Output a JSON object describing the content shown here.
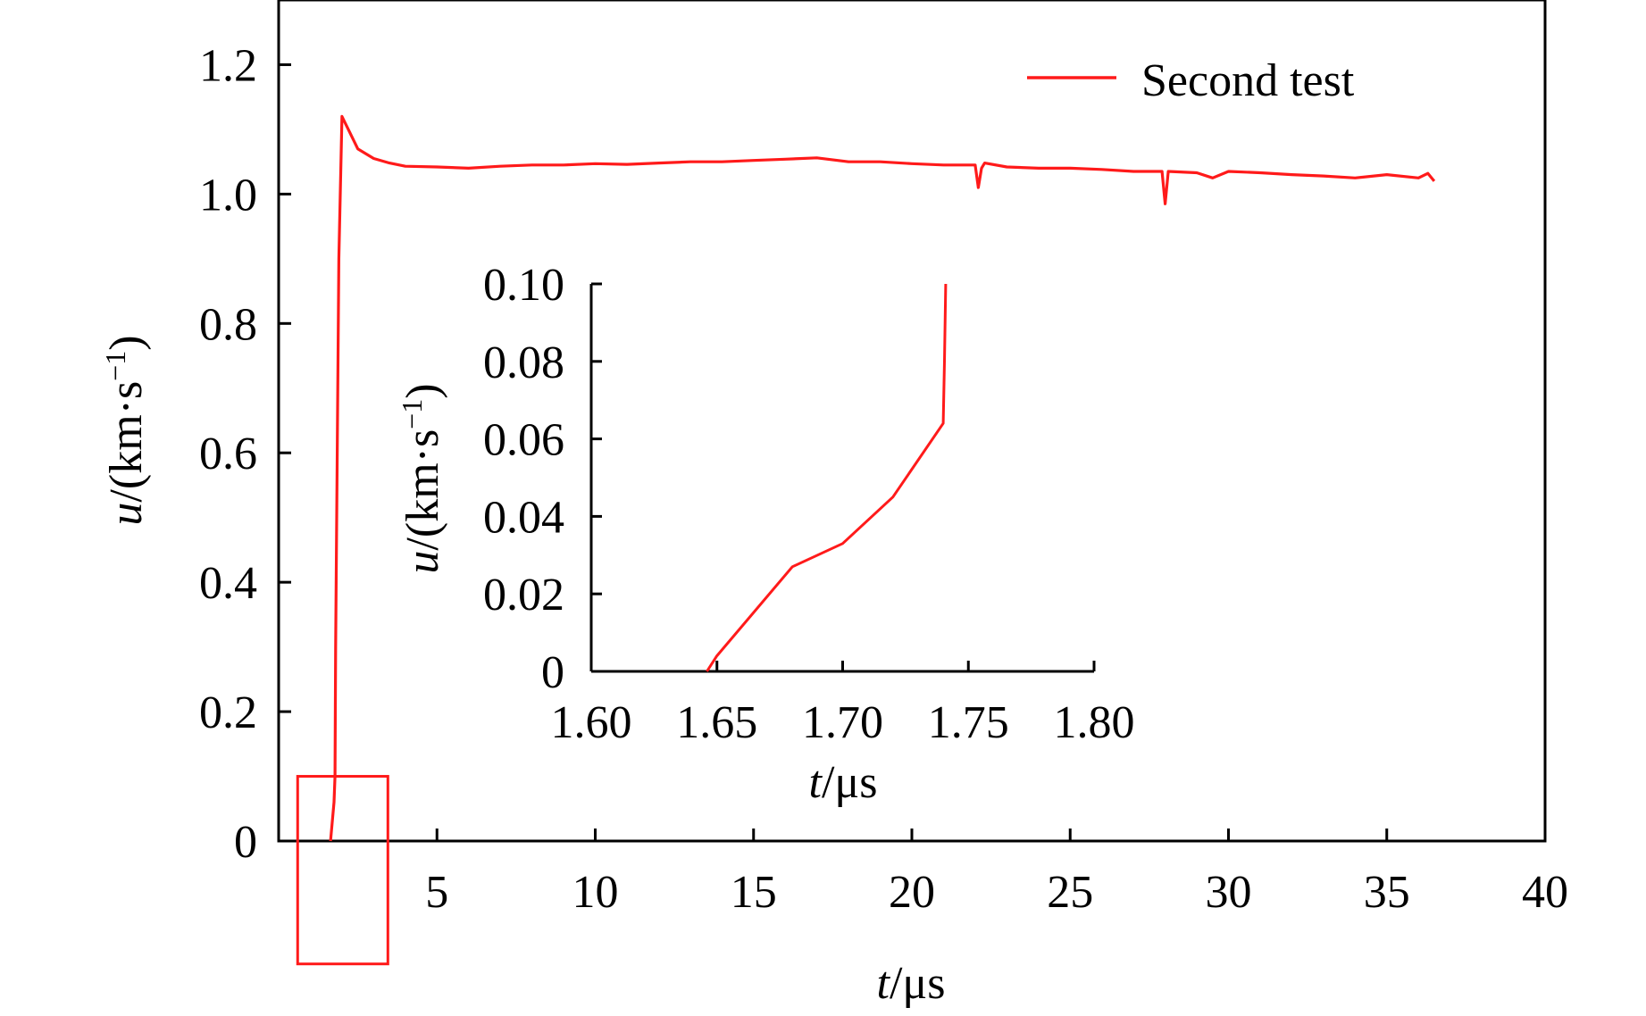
{
  "colors": {
    "series": "#ff1a1a",
    "axis": "#000000",
    "background": "#ffffff"
  },
  "chart_data": [
    {
      "type": "line",
      "panel": "main",
      "title": "",
      "xlabel": {
        "var": "t",
        "unit": "/μs"
      },
      "ylabel": {
        "var": "u",
        "unit": "/(km·s",
        "exp": "−1",
        "close": ")"
      },
      "xlim": [
        0,
        40
      ],
      "ylim": [
        0,
        1.3
      ],
      "x_ticks": [
        {
          "v": 5,
          "label": "5"
        },
        {
          "v": 10,
          "label": "10"
        },
        {
          "v": 15,
          "label": "15"
        },
        {
          "v": 20,
          "label": "20"
        },
        {
          "v": 25,
          "label": "25"
        },
        {
          "v": 30,
          "label": "30"
        },
        {
          "v": 35,
          "label": "35"
        },
        {
          "v": 40,
          "label": "40"
        }
      ],
      "y_ticks": [
        {
          "v": 0,
          "label": "0"
        },
        {
          "v": 0.2,
          "label": "0.2"
        },
        {
          "v": 0.4,
          "label": "0.4"
        },
        {
          "v": 0.6,
          "label": "0.6"
        },
        {
          "v": 0.8,
          "label": "0.8"
        },
        {
          "v": 1.0,
          "label": "1.0"
        },
        {
          "v": 1.2,
          "label": "1.2"
        }
      ],
      "grid": false,
      "legend": {
        "position": "top-right",
        "entries": [
          "Second test"
        ]
      },
      "series": [
        {
          "name": "Second test",
          "color": "#ff1a1a",
          "x": [
            1.64,
            1.75,
            1.78,
            1.8,
            1.85,
            1.9,
            2.0,
            2.2,
            2.5,
            3.0,
            3.5,
            4.0,
            5.0,
            6.0,
            7.0,
            8.0,
            9.0,
            10.0,
            11.0,
            12.0,
            13.0,
            14.0,
            15.0,
            16.0,
            17.0,
            18.0,
            19.0,
            20.0,
            21.0,
            22.0,
            22.1,
            22.2,
            22.3,
            23.0,
            24.0,
            25.0,
            26.0,
            27.0,
            27.9,
            28.0,
            28.1,
            29.0,
            29.5,
            30.0,
            31.0,
            32.0,
            33.0,
            34.0,
            35.0,
            36.0,
            36.3,
            36.5
          ],
          "y": [
            0.0,
            0.06,
            0.1,
            0.3,
            0.6,
            0.9,
            1.12,
            1.1,
            1.07,
            1.055,
            1.048,
            1.043,
            1.042,
            1.04,
            1.043,
            1.045,
            1.045,
            1.047,
            1.046,
            1.048,
            1.05,
            1.05,
            1.052,
            1.054,
            1.056,
            1.05,
            1.05,
            1.047,
            1.045,
            1.045,
            1.01,
            1.04,
            1.048,
            1.042,
            1.04,
            1.04,
            1.038,
            1.035,
            1.035,
            0.985,
            1.035,
            1.033,
            1.025,
            1.035,
            1.033,
            1.03,
            1.028,
            1.025,
            1.03,
            1.025,
            1.032,
            1.02
          ]
        }
      ],
      "annotations": [
        {
          "type": "rectangle",
          "color": "#ff1a1a",
          "x_range": [
            0.6,
            3.45
          ],
          "y_range": [
            -0.19,
            0.1
          ],
          "meaning": "region enlarged in inset"
        }
      ]
    },
    {
      "type": "line",
      "panel": "inset",
      "title": "",
      "xlabel": {
        "var": "t",
        "unit": "/μs"
      },
      "ylabel": {
        "var": "u",
        "unit": "/(km·s",
        "exp": "−1",
        "close": ")"
      },
      "xlim": [
        1.6,
        1.8
      ],
      "ylim": [
        0,
        0.1
      ],
      "x_ticks": [
        {
          "v": 1.6,
          "label": "1.60"
        },
        {
          "v": 1.65,
          "label": "1.65"
        },
        {
          "v": 1.7,
          "label": "1.70"
        },
        {
          "v": 1.75,
          "label": "1.75"
        },
        {
          "v": 1.8,
          "label": "1.80"
        }
      ],
      "y_ticks": [
        {
          "v": 0,
          "label": "0"
        },
        {
          "v": 0.02,
          "label": "0.02"
        },
        {
          "v": 0.04,
          "label": "0.04"
        },
        {
          "v": 0.06,
          "label": "0.06"
        },
        {
          "v": 0.08,
          "label": "0.08"
        },
        {
          "v": 0.1,
          "label": "0.10"
        }
      ],
      "grid": false,
      "series": [
        {
          "color": "#ff1a1a",
          "x": [
            1.646,
            1.65,
            1.68,
            1.7,
            1.72,
            1.74,
            1.7405,
            1.741
          ],
          "y": [
            0.0,
            0.004,
            0.027,
            0.033,
            0.045,
            0.064,
            0.08,
            0.1
          ]
        }
      ]
    }
  ]
}
